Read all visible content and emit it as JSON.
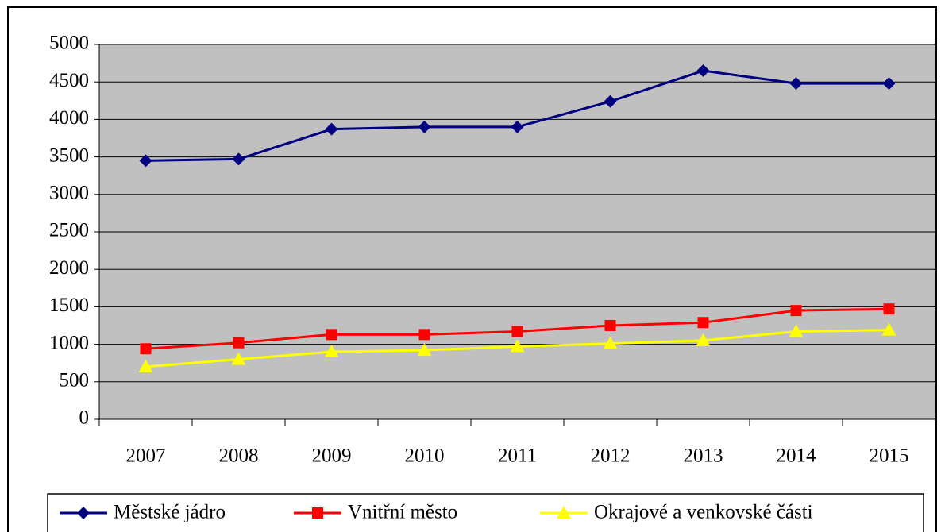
{
  "chart_data": {
    "type": "line",
    "categories": [
      "2007",
      "2008",
      "2009",
      "2010",
      "2011",
      "2012",
      "2013",
      "2014",
      "2015"
    ],
    "series": [
      {
        "name": "Městské jádro",
        "color": "#000080",
        "marker": "diamond",
        "values": [
          3450,
          3470,
          3870,
          3900,
          3900,
          4240,
          4650,
          4480,
          4480
        ]
      },
      {
        "name": "Vnitřní město",
        "color": "#ff0000",
        "marker": "square",
        "values": [
          940,
          1020,
          1130,
          1130,
          1170,
          1250,
          1290,
          1450,
          1470
        ]
      },
      {
        "name": "Okrajové a venkovské části",
        "color": "#ffff00",
        "marker": "triangle",
        "values": [
          700,
          800,
          900,
          920,
          970,
          1010,
          1050,
          1170,
          1190
        ]
      }
    ],
    "ylim": [
      0,
      5000
    ],
    "yticks": [
      0,
      500,
      1000,
      1500,
      2000,
      2500,
      3000,
      3500,
      4000,
      4500,
      5000
    ],
    "grid": true,
    "legend": "bottom"
  }
}
